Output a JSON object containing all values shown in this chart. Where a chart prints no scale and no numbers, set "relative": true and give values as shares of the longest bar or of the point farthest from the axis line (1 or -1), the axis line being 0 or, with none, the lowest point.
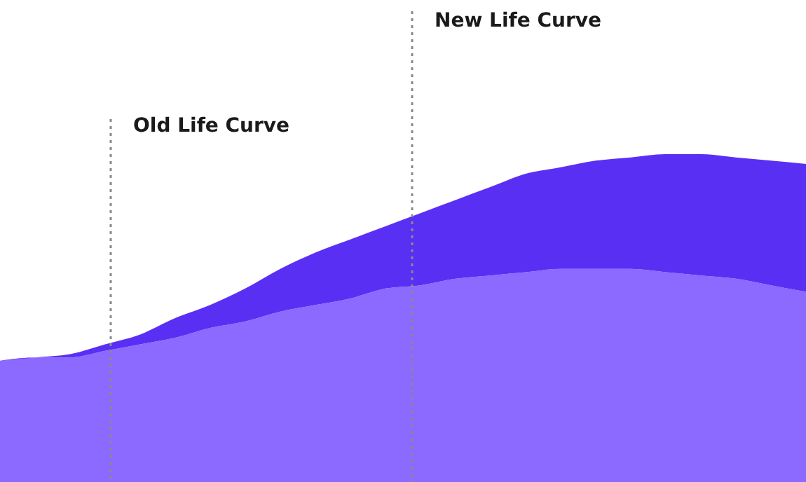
{
  "chart_data": {
    "type": "area",
    "relative": true,
    "categories": [
      null,
      null,
      null,
      null,
      null,
      null,
      null,
      null,
      null,
      null,
      null,
      null,
      null,
      null,
      null,
      null,
      null,
      null,
      null,
      null,
      null,
      null,
      null,
      null
    ],
    "series": [
      {
        "color": "#5a2ff4",
        "values": [
          0.37,
          0.38,
          0.39,
          0.42,
          0.45,
          0.5,
          0.54,
          0.59,
          0.65,
          0.7,
          0.74,
          0.78,
          0.82,
          0.86,
          0.9,
          0.94,
          0.96,
          0.98,
          0.99,
          1.0,
          1.0,
          0.99,
          0.98,
          0.97
        ]
      },
      {
        "color": "#8c69ff",
        "values": [
          0.37,
          0.38,
          0.38,
          0.4,
          0.42,
          0.44,
          0.47,
          0.49,
          0.52,
          0.54,
          0.56,
          0.59,
          0.6,
          0.62,
          0.63,
          0.64,
          0.65,
          0.65,
          0.65,
          0.64,
          0.63,
          0.62,
          0.6,
          0.58
        ]
      }
    ],
    "annotations": [
      "Old Life Curve",
      "New Life Curve"
    ]
  }
}
